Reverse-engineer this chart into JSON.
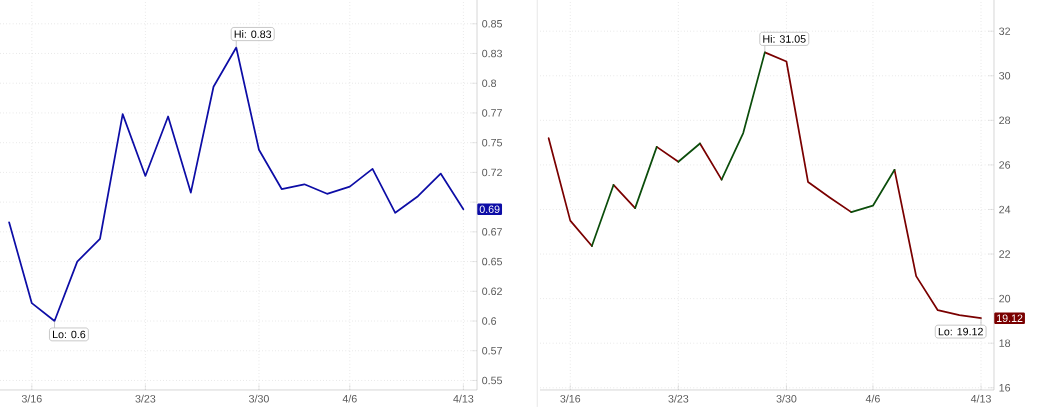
{
  "chart_data": [
    {
      "type": "line",
      "categories": [
        null,
        "3/16",
        null,
        null,
        null,
        null,
        "3/23",
        null,
        null,
        null,
        null,
        "3/30",
        null,
        null,
        null,
        "4/6",
        null,
        null,
        null,
        null,
        "4/13"
      ],
      "series": [
        {
          "color": "#0d0da6",
          "values": [
            0.683,
            0.615,
            0.6,
            0.65,
            0.669,
            0.774,
            0.722,
            0.772,
            0.708,
            0.797,
            0.83,
            0.744,
            0.711,
            0.715,
            0.707,
            0.713,
            0.728,
            0.691,
            0.705,
            0.724,
            0.694
          ],
          "value_labels": [
            null,
            null,
            null,
            null,
            null,
            null,
            null,
            null,
            null,
            null,
            null,
            null,
            null,
            null,
            null,
            null,
            null,
            null,
            null,
            null,
            "0.69"
          ]
        }
      ],
      "ylim": [
        0.542,
        0.87
      ],
      "yticks": [
        0.55,
        {
          "value": 0.575,
          "label": "0.57"
        },
        0.6,
        {
          "value": 0.625,
          "label": "0.62"
        },
        0.65,
        {
          "value": 0.675,
          "label": "0.67"
        },
        {
          "value": 0.7,
          "label": null
        },
        {
          "value": 0.725,
          "label": "0.72"
        },
        0.75,
        {
          "value": 0.775,
          "label": "0.77"
        },
        0.8,
        {
          "value": 0.825,
          "label": "0.83"
        },
        0.85
      ],
      "annotations": [
        "Hi: 0.83",
        "Lo: 0.6"
      ],
      "grid": true
    },
    {
      "type": "line",
      "categories": [
        null,
        "3/16",
        null,
        null,
        null,
        null,
        "3/23",
        null,
        null,
        null,
        null,
        "3/30",
        null,
        null,
        null,
        "4/6",
        null,
        null,
        null,
        null,
        "4/13"
      ],
      "series": [
        {
          "color": "#7a0000",
          "values": [
            27.2,
            23.5,
            22.36,
            null,
            null,
            26.81,
            26.14,
            null,
            null,
            null,
            31.05,
            30.64,
            25.23,
            24.54,
            23.88,
            null,
            null,
            null,
            null,
            null,
            null
          ]
        },
        {
          "color": "#7a0000",
          "values": [
            null,
            null,
            null,
            25.1,
            24.06,
            null,
            null,
            26.96,
            25.34,
            null,
            null,
            null,
            null,
            null,
            null,
            null,
            25.78,
            21.01,
            19.48,
            19.26,
            19.12
          ],
          "value_labels": [
            null,
            null,
            null,
            null,
            null,
            null,
            null,
            null,
            null,
            null,
            null,
            null,
            null,
            null,
            null,
            null,
            null,
            null,
            null,
            null,
            "19.12"
          ]
        },
        {
          "color": "#0b4d0b",
          "values": [
            null,
            null,
            22.36,
            25.1,
            null,
            null,
            26.14,
            26.96,
            null,
            null,
            null,
            null,
            null,
            null,
            23.88,
            24.17,
            25.78,
            null,
            null,
            null,
            null
          ]
        },
        {
          "color": "#0b4d0b",
          "values": [
            null,
            null,
            null,
            null,
            24.06,
            26.81,
            null,
            null,
            25.34,
            27.43,
            31.05,
            null,
            null,
            null,
            null,
            null,
            null,
            null,
            null,
            null,
            null
          ]
        }
      ],
      "ylim": [
        15.9,
        33.4
      ],
      "yticks": [
        16,
        18,
        20,
        22,
        24,
        26,
        28,
        30,
        32
      ],
      "annotations": [
        "Hi: 31.05",
        "Lo: 19.12"
      ],
      "grid": true
    }
  ]
}
